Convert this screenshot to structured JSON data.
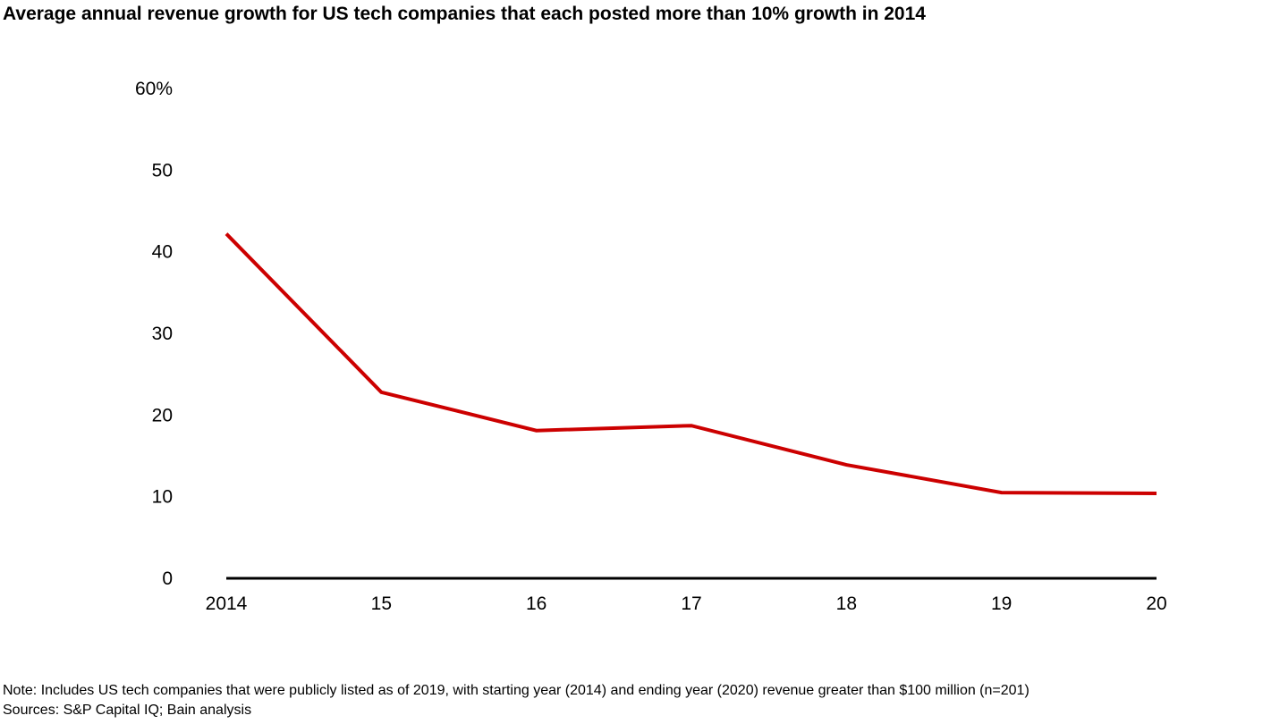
{
  "chart_data": {
    "type": "line",
    "title": "Average annual revenue growth for US tech companies that each posted more than 10% growth in 2014",
    "categories": [
      "2014",
      "15",
      "16",
      "17",
      "18",
      "19",
      "20"
    ],
    "series": [
      {
        "values": [
          42.2,
          22.8,
          18.1,
          18.7,
          13.9,
          10.5,
          10.4
        ],
        "color": "#cc0000"
      }
    ],
    "yticks": [
      "0",
      "10",
      "20",
      "30",
      "40",
      "50",
      "60%"
    ],
    "ylim": [
      0,
      60
    ],
    "grid": false,
    "xlabel": "",
    "ylabel": ""
  },
  "footer": {
    "note": "Note: Includes US tech companies that were publicly listed as of 2019, with starting year (2014) and ending year (2020) revenue greater than $100 million (n=201)",
    "sources": "Sources: S&P Capital IQ; Bain analysis"
  }
}
